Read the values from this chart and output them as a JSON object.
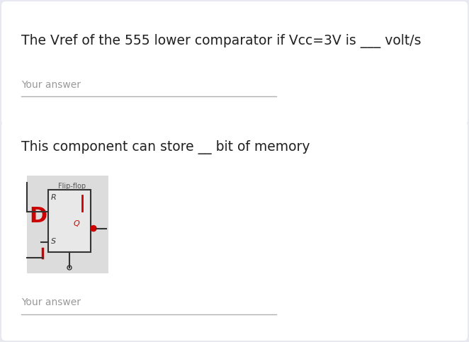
{
  "bg_outer": "#e8e8f0",
  "bg_card": "#ffffff",
  "q1_text": "The Vref of the 555 lower comparator if Vcc=3V is ___ volt/s",
  "q1_answer_placeholder": "Your answer",
  "q2_text": "This component can store __ bit of memory",
  "q2_answer_placeholder": "Your answer",
  "answer_line_color": "#b0b0b0",
  "answer_text_color": "#999999",
  "question_text_color": "#212121",
  "image_label": "Flip-flop",
  "image_bg": "#dcdcdc",
  "red_color": "#cc0000",
  "dark_color": "#333333"
}
